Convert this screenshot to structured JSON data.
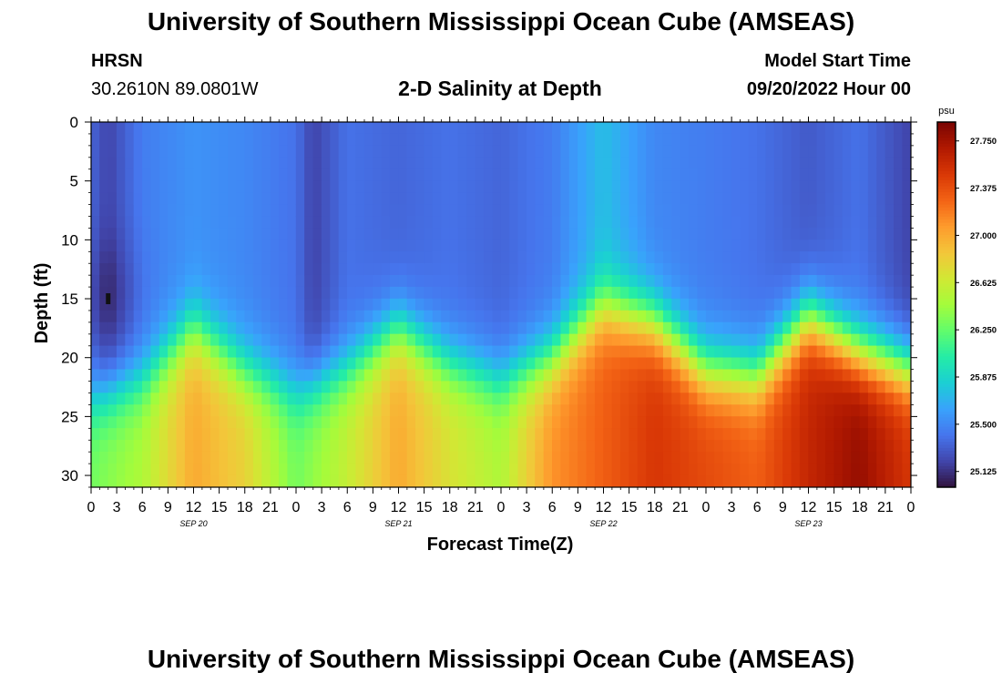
{
  "header": {
    "title": "University of Southern Mississippi Ocean Cube (AMSEAS)",
    "station": "HRSN",
    "coords": "30.2610N  89.0801W",
    "plot_title": "2-D Salinity at Depth",
    "start_label": "Model Start Time",
    "start_value": "09/20/2022 Hour 00"
  },
  "footer": {
    "title": "University of Southern Mississippi Ocean Cube (AMSEAS)"
  },
  "chart_data": {
    "type": "heatmap",
    "title": "2-D Salinity at Depth",
    "xlabel": "Forecast Time(Z)",
    "ylabel": "Depth (ft)",
    "x_range_hours": [
      0,
      96
    ],
    "y_range_ft": [
      0,
      31
    ],
    "y_reversed": true,
    "x_tick_labels": [
      "0",
      "3",
      "6",
      "9",
      "12",
      "15",
      "18",
      "21",
      "0",
      "3",
      "6",
      "9",
      "12",
      "15",
      "18",
      "21",
      "0",
      "3",
      "6",
      "9",
      "12",
      "15",
      "18",
      "21",
      "0",
      "3",
      "6",
      "9",
      "12",
      "15",
      "18",
      "21",
      "0"
    ],
    "y_ticks": [
      0,
      5,
      10,
      15,
      20,
      25,
      30
    ],
    "date_labels": [
      {
        "label": "SEP 20",
        "hour": 12
      },
      {
        "label": "SEP 21",
        "hour": 36
      },
      {
        "label": "SEP 22",
        "hour": 60
      },
      {
        "label": "SEP 23",
        "hour": 84
      }
    ],
    "colorbar": {
      "unit": "psu",
      "range": [
        25.0,
        27.9
      ],
      "tick_labels": [
        "27.750",
        "27.375",
        "27.000",
        "26.625",
        "26.250",
        "25.875",
        "25.500",
        "25.125"
      ],
      "tick_values": [
        27.75,
        27.375,
        27.0,
        26.625,
        26.25,
        25.875,
        25.5,
        25.125
      ]
    },
    "colors": [
      "#30123b",
      "#4145ab",
      "#4675ed",
      "#39a2fc",
      "#1bcfd4",
      "#24eca6",
      "#61fc6c",
      "#a4fc3b",
      "#d1e834",
      "#f3c63a",
      "#fe9b2d",
      "#f36315",
      "#d93806",
      "#b11901",
      "#7a0402"
    ],
    "surface_salinity_by_hour": [
      [
        0,
        25.35
      ],
      [
        2,
        25.2
      ],
      [
        6,
        25.45
      ],
      [
        12,
        25.55
      ],
      [
        18,
        25.5
      ],
      [
        24,
        25.4
      ],
      [
        26,
        25.2
      ],
      [
        30,
        25.4
      ],
      [
        36,
        25.35
      ],
      [
        42,
        25.4
      ],
      [
        48,
        25.35
      ],
      [
        54,
        25.45
      ],
      [
        60,
        25.75
      ],
      [
        66,
        25.5
      ],
      [
        72,
        25.45
      ],
      [
        78,
        25.4
      ],
      [
        84,
        25.3
      ],
      [
        90,
        25.4
      ],
      [
        96,
        25.2
      ]
    ],
    "bottom_salinity_by_hour": [
      [
        0,
        26.3
      ],
      [
        6,
        26.5
      ],
      [
        12,
        27.0
      ],
      [
        18,
        26.8
      ],
      [
        24,
        26.3
      ],
      [
        30,
        26.6
      ],
      [
        36,
        27.0
      ],
      [
        42,
        26.7
      ],
      [
        48,
        26.5
      ],
      [
        54,
        27.1
      ],
      [
        60,
        27.3
      ],
      [
        66,
        27.5
      ],
      [
        72,
        27.4
      ],
      [
        78,
        27.3
      ],
      [
        84,
        27.6
      ],
      [
        90,
        27.8
      ],
      [
        96,
        27.5
      ]
    ],
    "halocline_depth_ft_by_hour": [
      [
        0,
        23.5
      ],
      [
        6,
        22
      ],
      [
        12,
        17.5
      ],
      [
        18,
        21
      ],
      [
        24,
        23
      ],
      [
        30,
        21
      ],
      [
        36,
        17.5
      ],
      [
        42,
        20.5
      ],
      [
        48,
        22
      ],
      [
        54,
        20
      ],
      [
        60,
        15.5
      ],
      [
        66,
        17
      ],
      [
        72,
        21
      ],
      [
        78,
        21.5
      ],
      [
        84,
        16.5
      ],
      [
        90,
        19.5
      ],
      [
        96,
        21
      ]
    ],
    "marker": {
      "hour": 2,
      "depth_ft": 15
    }
  }
}
